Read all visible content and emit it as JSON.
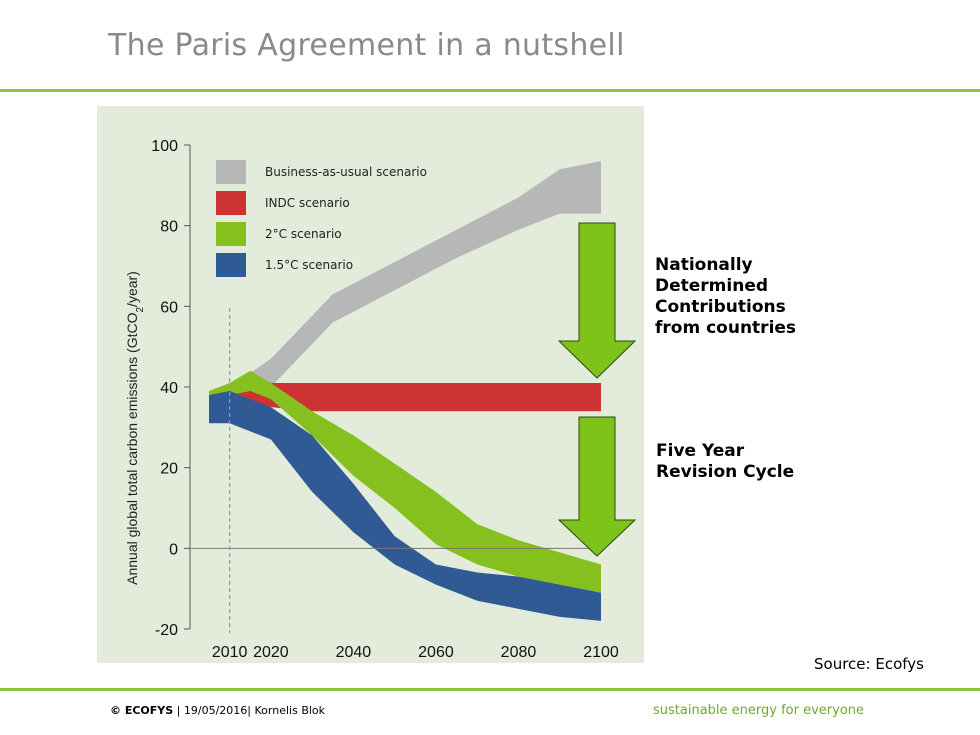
{
  "slide": {
    "title": "The Paris Agreement in a nutshell",
    "source": "Source: Ecofys",
    "annotations": {
      "ndc": "Nationally\nDetermined\nContributions\nfrom countries",
      "revision": "Five Year\nRevision Cycle"
    },
    "footer": {
      "copyright": "© ECOFYS",
      "date": "19/05/2016",
      "author": "Kornelis Blok",
      "tagline": "sustainable energy for everyone"
    },
    "colors": {
      "accent": "#8cc63f",
      "arrow": "#7dc31a",
      "chart_background": "#e3ecda"
    }
  },
  "chart_data": {
    "type": "area",
    "title": "",
    "ylabel": "Annual global total carbon emissions (GtCO2/year)",
    "xlabel": "",
    "xlim": [
      2005,
      2100
    ],
    "ylim": [
      -20,
      100
    ],
    "xticks": [
      2010,
      2020,
      2040,
      2060,
      2080,
      2100
    ],
    "yticks": [
      -20,
      0,
      20,
      40,
      60,
      80,
      100
    ],
    "reference_line_x": 2010,
    "legend_position": "top-left",
    "series": [
      {
        "name": "Business-as-usual scenario",
        "color": "#b7b7b7",
        "x": [
          2010,
          2020,
          2035,
          2050,
          2065,
          2080,
          2090,
          2100
        ],
        "upper": [
          40,
          47,
          63,
          71,
          79,
          87,
          94,
          96
        ],
        "lower": [
          38,
          40,
          56,
          64,
          72,
          79,
          83,
          83
        ]
      },
      {
        "name": "INDC scenario",
        "color": "#cd3333",
        "x": [
          2005,
          2010,
          2020,
          2030,
          2050,
          2070,
          2090,
          2100
        ],
        "upper": [
          39,
          40,
          41,
          41,
          41,
          41,
          41,
          41
        ],
        "lower": [
          37,
          36,
          35,
          34,
          34,
          34,
          34,
          34
        ]
      },
      {
        "name": "2°C scenario",
        "color": "#85c01e",
        "x": [
          2005,
          2010,
          2015,
          2020,
          2030,
          2040,
          2050,
          2060,
          2070,
          2080,
          2090,
          2100
        ],
        "upper": [
          39,
          41,
          44,
          41,
          34,
          28,
          21,
          14,
          6,
          2,
          -1,
          -4
        ],
        "lower": [
          37,
          38,
          39,
          37,
          28,
          18,
          10,
          1,
          -4,
          -7,
          -9,
          -11
        ]
      },
      {
        "name": "1.5°C scenario",
        "color": "#2f5a93",
        "x": [
          2005,
          2010,
          2020,
          2030,
          2040,
          2050,
          2060,
          2070,
          2080,
          2090,
          2100
        ],
        "upper": [
          38,
          39,
          35,
          28,
          16,
          3,
          -4,
          -6,
          -7,
          -9,
          -11
        ],
        "lower": [
          31,
          31,
          27,
          14,
          4,
          -4,
          -9,
          -13,
          -15,
          -17,
          -18
        ]
      }
    ]
  }
}
